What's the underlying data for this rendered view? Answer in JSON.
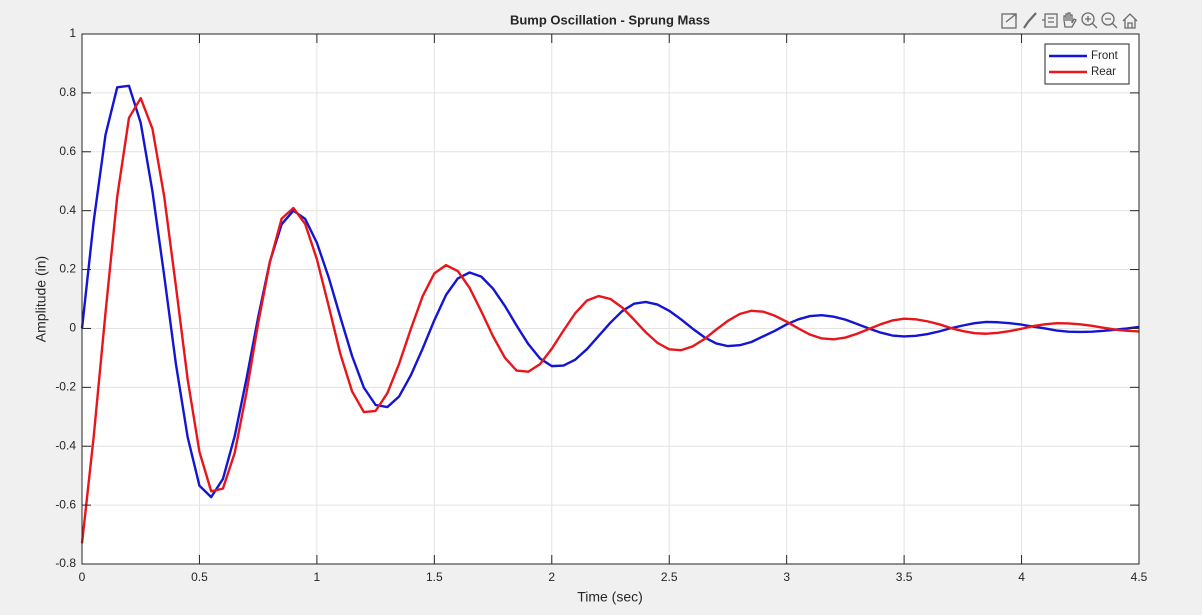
{
  "chart_data": {
    "type": "line",
    "title": "Bump Oscillation - Sprung Mass",
    "xlabel": "Time (sec)",
    "ylabel": "Amplitude (in)",
    "x": [
      0,
      0.05,
      0.1,
      0.15,
      0.2,
      0.25,
      0.3,
      0.35,
      0.4,
      0.45,
      0.5,
      0.55,
      0.6,
      0.65,
      0.7,
      0.75,
      0.8,
      0.85,
      0.9,
      0.95,
      1.0,
      1.05,
      1.1,
      1.15,
      1.2,
      1.25,
      1.3,
      1.35,
      1.4,
      1.45,
      1.5,
      1.55,
      1.6,
      1.65,
      1.7,
      1.75,
      1.8,
      1.85,
      1.9,
      1.95,
      2.0,
      2.05,
      2.1,
      2.15,
      2.2,
      2.25,
      2.3,
      2.35,
      2.4,
      2.45,
      2.5,
      2.55,
      2.6,
      2.65,
      2.7,
      2.75,
      2.8,
      2.85,
      2.9,
      2.95,
      3.0,
      3.05,
      3.1,
      3.15,
      3.2,
      3.25,
      3.3,
      3.35,
      3.4,
      3.45,
      3.5,
      3.55,
      3.6,
      3.65,
      3.7,
      3.75,
      3.8,
      3.85,
      3.9,
      3.95,
      4.0,
      4.05,
      4.1,
      4.15,
      4.2,
      4.25,
      4.3,
      4.35,
      4.4,
      4.45,
      4.5
    ],
    "series": [
      {
        "name": "Front",
        "color": "#1414d4",
        "values": [
          0,
          0.365,
          0.657,
          0.819,
          0.824,
          0.698,
          0.465,
          0.179,
          -0.122,
          -0.37,
          -0.534,
          -0.573,
          -0.511,
          -0.366,
          -0.172,
          0.038,
          0.227,
          0.354,
          0.4,
          0.372,
          0.291,
          0.174,
          0.038,
          -0.094,
          -0.201,
          -0.26,
          -0.267,
          -0.231,
          -0.159,
          -0.069,
          0.028,
          0.114,
          0.17,
          0.19,
          0.176,
          0.135,
          0.077,
          0.01,
          -0.053,
          -0.102,
          -0.128,
          -0.126,
          -0.106,
          -0.07,
          -0.025,
          0.02,
          0.059,
          0.084,
          0.09,
          0.081,
          0.06,
          0.031,
          -0.001,
          -0.03,
          -0.051,
          -0.06,
          -0.057,
          -0.046,
          -0.027,
          -0.008,
          0.014,
          0.031,
          0.042,
          0.045,
          0.04,
          0.03,
          0.015,
          0,
          -0.014,
          -0.024,
          -0.027,
          -0.025,
          -0.019,
          -0.01,
          0.001,
          0.01,
          0.018,
          0.022,
          0.021,
          0.018,
          0.013,
          0.006,
          0,
          -0.007,
          -0.011,
          -0.012,
          -0.011,
          -0.008,
          -0.004,
          0,
          0.005
        ]
      },
      {
        "name": "Rear",
        "color": "#e8161b",
        "values": [
          -0.73,
          -0.366,
          0.053,
          0.448,
          0.715,
          0.782,
          0.678,
          0.448,
          0.142,
          -0.174,
          -0.419,
          -0.553,
          -0.544,
          -0.423,
          -0.219,
          0.018,
          0.225,
          0.373,
          0.409,
          0.355,
          0.235,
          0.077,
          -0.087,
          -0.214,
          -0.284,
          -0.28,
          -0.22,
          -0.12,
          -0.002,
          0.109,
          0.187,
          0.215,
          0.195,
          0.138,
          0.058,
          -0.027,
          -0.099,
          -0.143,
          -0.147,
          -0.121,
          -0.069,
          -0.007,
          0.052,
          0.095,
          0.11,
          0.1,
          0.071,
          0.03,
          -0.013,
          -0.049,
          -0.071,
          -0.074,
          -0.061,
          -0.036,
          -0.004,
          0.026,
          0.049,
          0.06,
          0.057,
          0.043,
          0.023,
          0,
          -0.021,
          -0.034,
          -0.037,
          -0.031,
          -0.018,
          -0.002,
          0.014,
          0.027,
          0.033,
          0.031,
          0.024,
          0.014,
          0.001,
          -0.009,
          -0.016,
          -0.018,
          -0.015,
          -0.009,
          -0.001,
          0.008,
          0.014,
          0.018,
          0.017,
          0.014,
          0.009,
          0.002,
          -0.004,
          -0.008,
          -0.01
        ]
      }
    ],
    "xlim": [
      0,
      4.5
    ],
    "xticks": [
      0,
      0.5,
      1,
      1.5,
      2,
      2.5,
      3,
      3.5,
      4,
      4.5
    ],
    "ylim": [
      -0.8,
      1
    ],
    "yticks": [
      -0.8,
      -0.6,
      -0.4,
      -0.2,
      0,
      0.2,
      0.4,
      0.6,
      0.8,
      1
    ],
    "grid": true,
    "legend": "northeast"
  }
}
